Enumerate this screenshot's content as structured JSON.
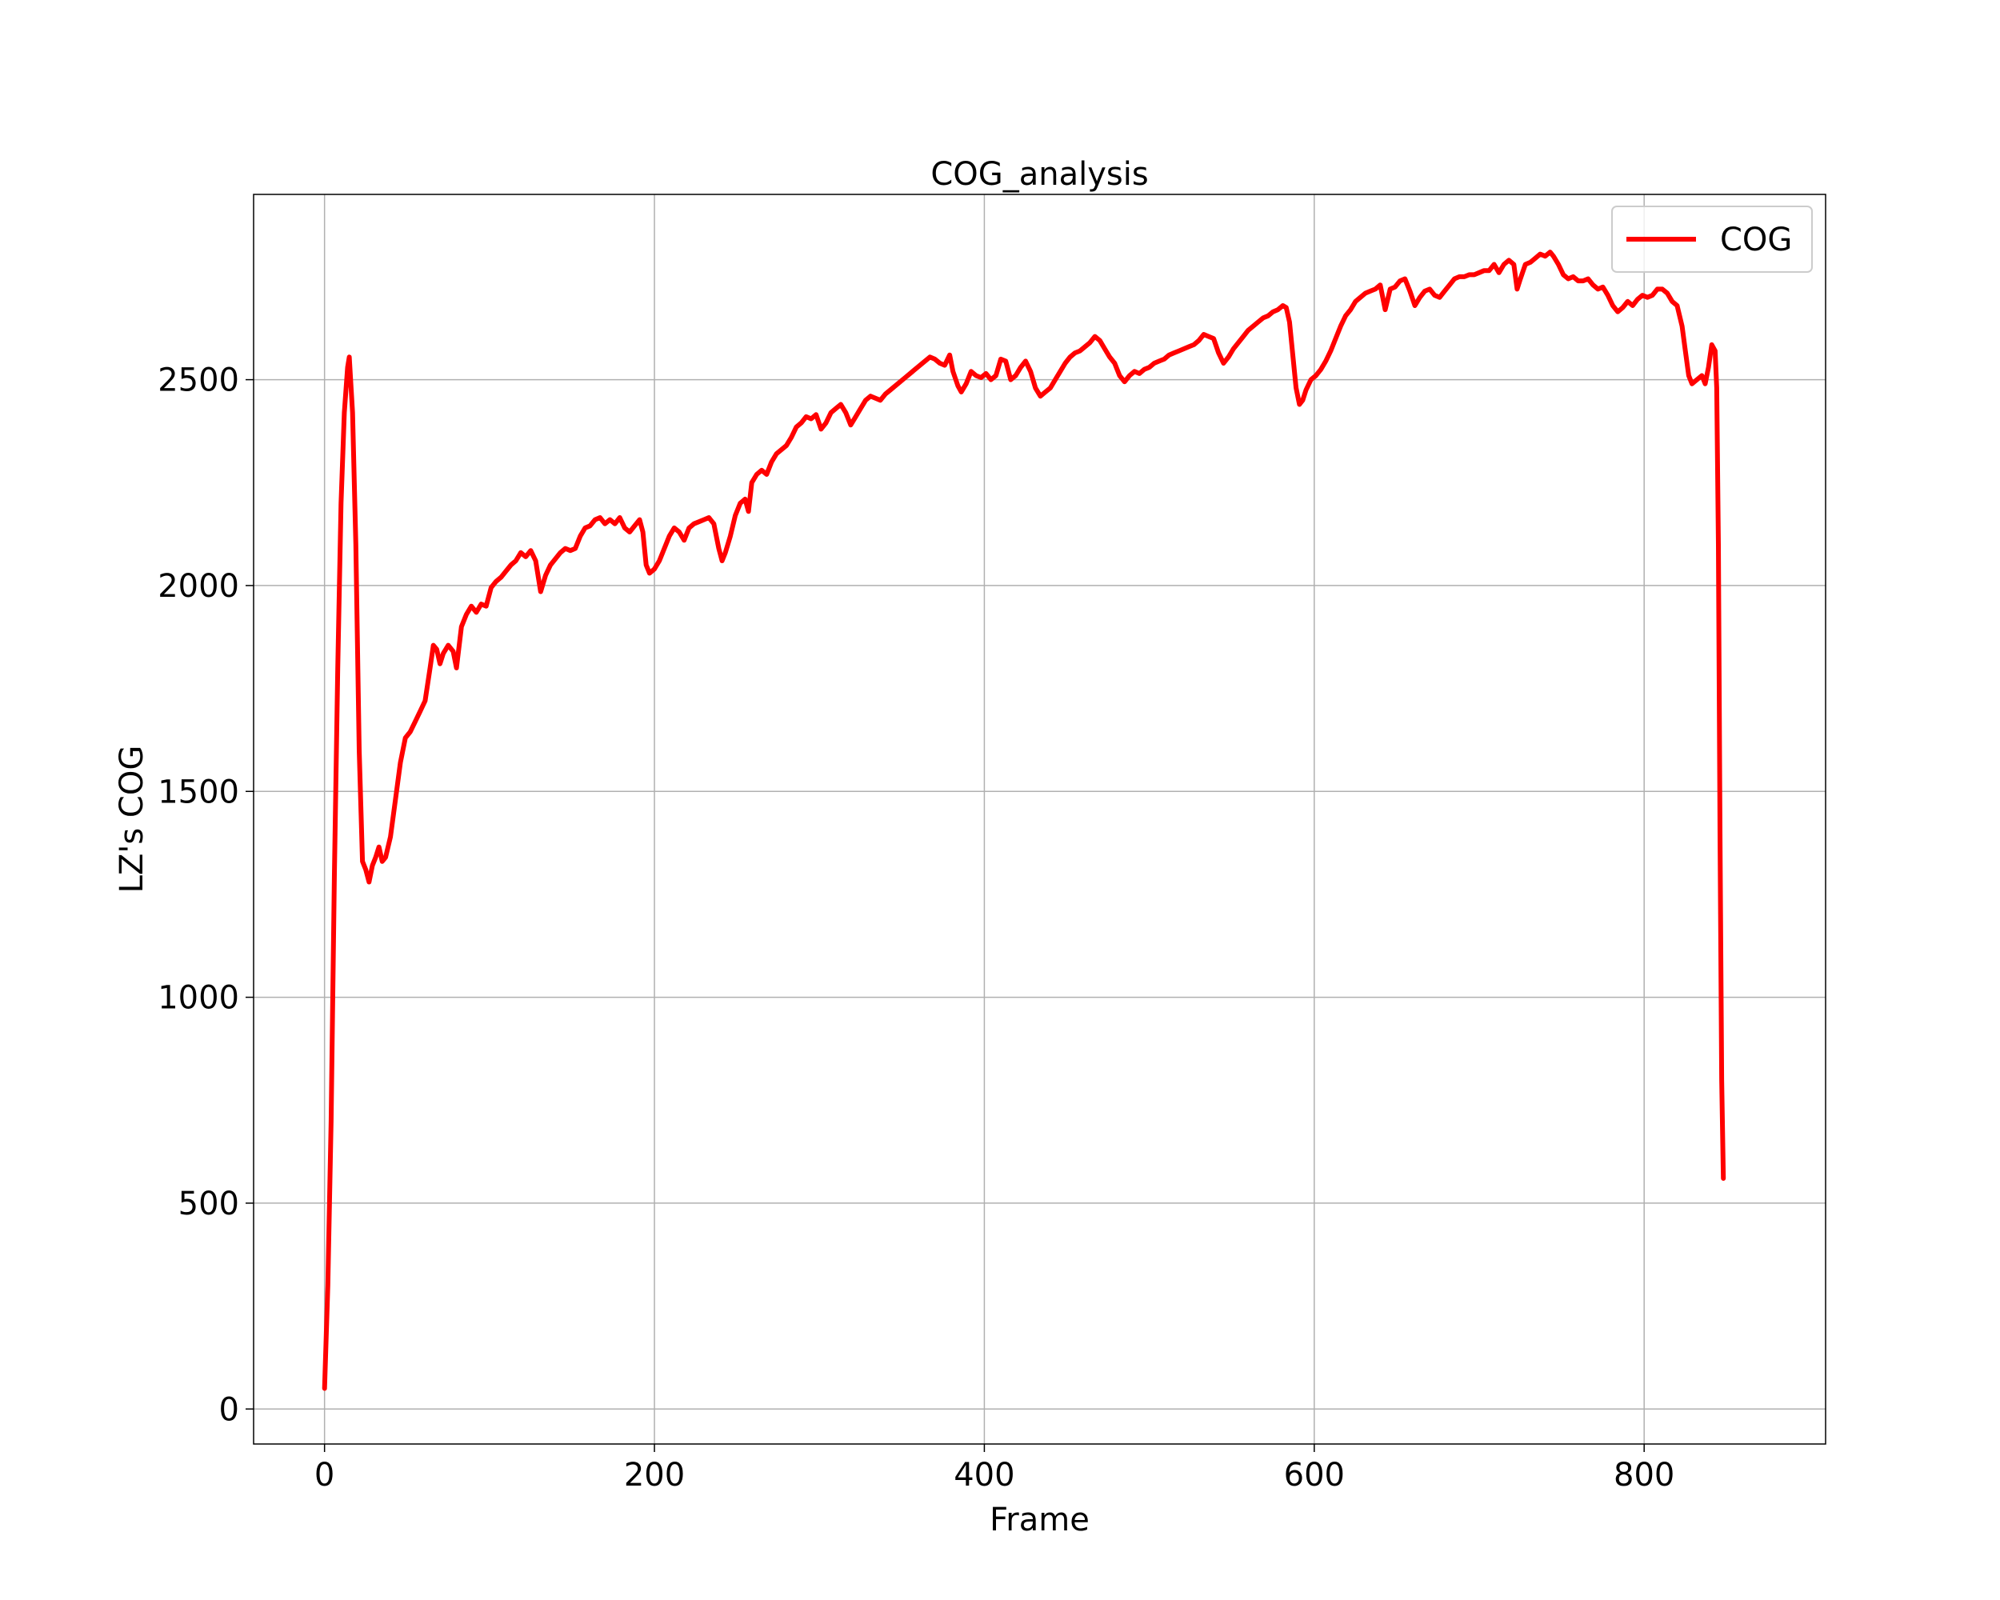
{
  "chart_data": {
    "type": "line",
    "title": "COG_analysis",
    "xlabel": "Frame",
    "ylabel": "LZ's COG",
    "xlim": [
      -43,
      910
    ],
    "ylim": [
      -85,
      2950
    ],
    "xticks": [
      0,
      200,
      400,
      600,
      800
    ],
    "yticks": [
      0,
      500,
      1000,
      1500,
      2000,
      2500
    ],
    "grid": true,
    "legend_position": "top-right",
    "series": [
      {
        "name": "COG",
        "color": "#ff0000",
        "points": [
          [
            0,
            50
          ],
          [
            2,
            300
          ],
          [
            4,
            700
          ],
          [
            6,
            1300
          ],
          [
            8,
            1800
          ],
          [
            10,
            2200
          ],
          [
            12,
            2420
          ],
          [
            14,
            2530
          ],
          [
            15,
            2555
          ],
          [
            17,
            2420
          ],
          [
            19,
            2100
          ],
          [
            21,
            1600
          ],
          [
            23,
            1330
          ],
          [
            25,
            1310
          ],
          [
            27,
            1280
          ],
          [
            29,
            1320
          ],
          [
            31,
            1340
          ],
          [
            33,
            1365
          ],
          [
            35,
            1330
          ],
          [
            37,
            1340
          ],
          [
            40,
            1390
          ],
          [
            43,
            1480
          ],
          [
            46,
            1570
          ],
          [
            49,
            1630
          ],
          [
            52,
            1645
          ],
          [
            55,
            1670
          ],
          [
            58,
            1695
          ],
          [
            61,
            1720
          ],
          [
            64,
            1800
          ],
          [
            66,
            1855
          ],
          [
            68,
            1845
          ],
          [
            70,
            1810
          ],
          [
            72,
            1835
          ],
          [
            75,
            1855
          ],
          [
            78,
            1840
          ],
          [
            80,
            1800
          ],
          [
            83,
            1900
          ],
          [
            86,
            1930
          ],
          [
            89,
            1950
          ],
          [
            92,
            1935
          ],
          [
            95,
            1955
          ],
          [
            98,
            1950
          ],
          [
            101,
            1995
          ],
          [
            104,
            2010
          ],
          [
            107,
            2020
          ],
          [
            110,
            2035
          ],
          [
            113,
            2050
          ],
          [
            116,
            2060
          ],
          [
            119,
            2080
          ],
          [
            122,
            2070
          ],
          [
            125,
            2085
          ],
          [
            128,
            2060
          ],
          [
            131,
            1985
          ],
          [
            134,
            2025
          ],
          [
            137,
            2050
          ],
          [
            140,
            2065
          ],
          [
            143,
            2080
          ],
          [
            146,
            2090
          ],
          [
            149,
            2085
          ],
          [
            152,
            2090
          ],
          [
            155,
            2120
          ],
          [
            158,
            2140
          ],
          [
            161,
            2145
          ],
          [
            164,
            2160
          ],
          [
            167,
            2165
          ],
          [
            170,
            2150
          ],
          [
            173,
            2160
          ],
          [
            176,
            2150
          ],
          [
            179,
            2165
          ],
          [
            182,
            2140
          ],
          [
            185,
            2130
          ],
          [
            188,
            2145
          ],
          [
            191,
            2160
          ],
          [
            193,
            2130
          ],
          [
            195,
            2050
          ],
          [
            197,
            2030
          ],
          [
            200,
            2040
          ],
          [
            203,
            2060
          ],
          [
            206,
            2090
          ],
          [
            209,
            2120
          ],
          [
            212,
            2140
          ],
          [
            215,
            2130
          ],
          [
            218,
            2110
          ],
          [
            221,
            2140
          ],
          [
            224,
            2150
          ],
          [
            227,
            2155
          ],
          [
            230,
            2160
          ],
          [
            233,
            2165
          ],
          [
            236,
            2150
          ],
          [
            239,
            2090
          ],
          [
            241,
            2060
          ],
          [
            243,
            2080
          ],
          [
            246,
            2120
          ],
          [
            249,
            2170
          ],
          [
            252,
            2200
          ],
          [
            255,
            2210
          ],
          [
            257,
            2180
          ],
          [
            259,
            2250
          ],
          [
            262,
            2270
          ],
          [
            265,
            2280
          ],
          [
            268,
            2270
          ],
          [
            271,
            2300
          ],
          [
            274,
            2320
          ],
          [
            277,
            2330
          ],
          [
            280,
            2340
          ],
          [
            283,
            2360
          ],
          [
            286,
            2385
          ],
          [
            289,
            2395
          ],
          [
            292,
            2410
          ],
          [
            295,
            2405
          ],
          [
            298,
            2415
          ],
          [
            301,
            2380
          ],
          [
            304,
            2395
          ],
          [
            307,
            2420
          ],
          [
            310,
            2430
          ],
          [
            313,
            2440
          ],
          [
            316,
            2420
          ],
          [
            319,
            2390
          ],
          [
            322,
            2410
          ],
          [
            325,
            2430
          ],
          [
            328,
            2450
          ],
          [
            331,
            2460
          ],
          [
            334,
            2455
          ],
          [
            337,
            2450
          ],
          [
            340,
            2465
          ],
          [
            343,
            2475
          ],
          [
            346,
            2485
          ],
          [
            349,
            2495
          ],
          [
            352,
            2505
          ],
          [
            355,
            2515
          ],
          [
            358,
            2525
          ],
          [
            361,
            2535
          ],
          [
            364,
            2545
          ],
          [
            367,
            2555
          ],
          [
            370,
            2550
          ],
          [
            373,
            2540
          ],
          [
            376,
            2535
          ],
          [
            379,
            2560
          ],
          [
            381,
            2520
          ],
          [
            384,
            2485
          ],
          [
            386,
            2470
          ],
          [
            389,
            2490
          ],
          [
            392,
            2520
          ],
          [
            395,
            2510
          ],
          [
            398,
            2505
          ],
          [
            401,
            2515
          ],
          [
            404,
            2500
          ],
          [
            407,
            2510
          ],
          [
            410,
            2550
          ],
          [
            413,
            2545
          ],
          [
            416,
            2500
          ],
          [
            419,
            2510
          ],
          [
            422,
            2530
          ],
          [
            425,
            2545
          ],
          [
            428,
            2520
          ],
          [
            431,
            2480
          ],
          [
            434,
            2460
          ],
          [
            437,
            2470
          ],
          [
            440,
            2480
          ],
          [
            443,
            2500
          ],
          [
            446,
            2520
          ],
          [
            449,
            2540
          ],
          [
            452,
            2555
          ],
          [
            455,
            2565
          ],
          [
            458,
            2570
          ],
          [
            461,
            2580
          ],
          [
            464,
            2590
          ],
          [
            467,
            2605
          ],
          [
            470,
            2595
          ],
          [
            473,
            2575
          ],
          [
            476,
            2555
          ],
          [
            479,
            2540
          ],
          [
            482,
            2510
          ],
          [
            485,
            2495
          ],
          [
            488,
            2510
          ],
          [
            491,
            2520
          ],
          [
            494,
            2515
          ],
          [
            497,
            2525
          ],
          [
            500,
            2530
          ],
          [
            503,
            2540
          ],
          [
            506,
            2545
          ],
          [
            509,
            2550
          ],
          [
            512,
            2560
          ],
          [
            515,
            2565
          ],
          [
            518,
            2570
          ],
          [
            521,
            2575
          ],
          [
            524,
            2580
          ],
          [
            527,
            2585
          ],
          [
            530,
            2595
          ],
          [
            533,
            2610
          ],
          [
            536,
            2605
          ],
          [
            539,
            2600
          ],
          [
            542,
            2565
          ],
          [
            545,
            2540
          ],
          [
            548,
            2555
          ],
          [
            551,
            2575
          ],
          [
            554,
            2590
          ],
          [
            557,
            2605
          ],
          [
            560,
            2620
          ],
          [
            563,
            2630
          ],
          [
            566,
            2640
          ],
          [
            569,
            2650
          ],
          [
            572,
            2655
          ],
          [
            575,
            2665
          ],
          [
            578,
            2670
          ],
          [
            581,
            2680
          ],
          [
            583,
            2675
          ],
          [
            585,
            2640
          ],
          [
            587,
            2560
          ],
          [
            589,
            2480
          ],
          [
            591,
            2440
          ],
          [
            593,
            2450
          ],
          [
            595,
            2475
          ],
          [
            598,
            2500
          ],
          [
            601,
            2510
          ],
          [
            604,
            2525
          ],
          [
            607,
            2545
          ],
          [
            610,
            2570
          ],
          [
            613,
            2600
          ],
          [
            616,
            2630
          ],
          [
            619,
            2655
          ],
          [
            622,
            2670
          ],
          [
            625,
            2690
          ],
          [
            628,
            2700
          ],
          [
            631,
            2710
          ],
          [
            634,
            2715
          ],
          [
            637,
            2720
          ],
          [
            640,
            2730
          ],
          [
            643,
            2670
          ],
          [
            646,
            2720
          ],
          [
            649,
            2725
          ],
          [
            652,
            2740
          ],
          [
            655,
            2745
          ],
          [
            658,
            2715
          ],
          [
            661,
            2680
          ],
          [
            664,
            2700
          ],
          [
            667,
            2715
          ],
          [
            670,
            2720
          ],
          [
            673,
            2705
          ],
          [
            676,
            2700
          ],
          [
            679,
            2715
          ],
          [
            682,
            2730
          ],
          [
            685,
            2745
          ],
          [
            688,
            2750
          ],
          [
            691,
            2750
          ],
          [
            694,
            2755
          ],
          [
            697,
            2755
          ],
          [
            700,
            2760
          ],
          [
            703,
            2765
          ],
          [
            706,
            2765
          ],
          [
            709,
            2780
          ],
          [
            712,
            2760
          ],
          [
            715,
            2780
          ],
          [
            718,
            2790
          ],
          [
            721,
            2780
          ],
          [
            723,
            2720
          ],
          [
            725,
            2745
          ],
          [
            728,
            2780
          ],
          [
            731,
            2785
          ],
          [
            734,
            2795
          ],
          [
            737,
            2805
          ],
          [
            740,
            2800
          ],
          [
            743,
            2810
          ],
          [
            745,
            2800
          ],
          [
            748,
            2780
          ],
          [
            751,
            2755
          ],
          [
            754,
            2745
          ],
          [
            757,
            2750
          ],
          [
            760,
            2740
          ],
          [
            763,
            2740
          ],
          [
            766,
            2745
          ],
          [
            769,
            2730
          ],
          [
            772,
            2720
          ],
          [
            775,
            2725
          ],
          [
            778,
            2705
          ],
          [
            781,
            2680
          ],
          [
            784,
            2665
          ],
          [
            787,
            2675
          ],
          [
            790,
            2690
          ],
          [
            793,
            2680
          ],
          [
            796,
            2695
          ],
          [
            799,
            2705
          ],
          [
            802,
            2700
          ],
          [
            805,
            2705
          ],
          [
            808,
            2720
          ],
          [
            811,
            2720
          ],
          [
            814,
            2710
          ],
          [
            817,
            2690
          ],
          [
            820,
            2680
          ],
          [
            823,
            2630
          ],
          [
            825,
            2570
          ],
          [
            827,
            2510
          ],
          [
            829,
            2490
          ],
          [
            832,
            2500
          ],
          [
            835,
            2510
          ],
          [
            837,
            2490
          ],
          [
            839,
            2530
          ],
          [
            841,
            2585
          ],
          [
            843,
            2570
          ],
          [
            844,
            2480
          ],
          [
            845,
            2100
          ],
          [
            846,
            1400
          ],
          [
            847,
            800
          ],
          [
            848,
            560
          ]
        ]
      }
    ]
  }
}
